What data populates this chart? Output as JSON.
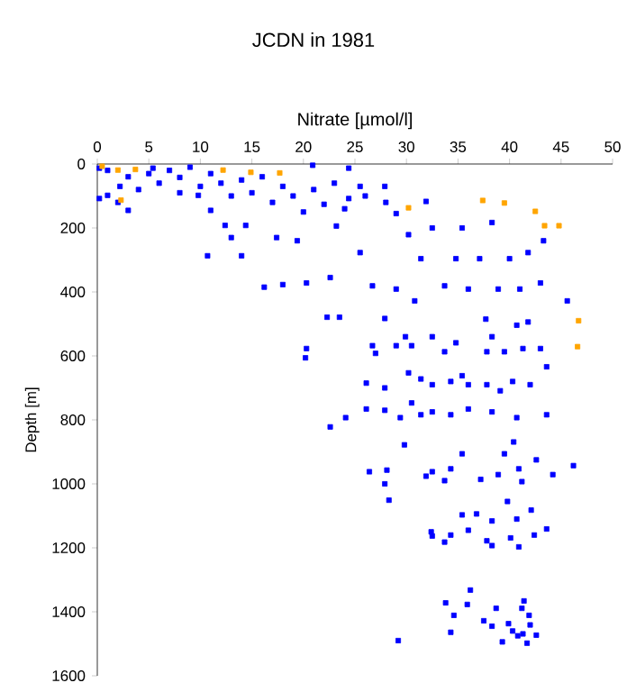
{
  "chart_data": {
    "type": "scatter",
    "title": "JCDN in 1981",
    "xlabel": "Nitrate [µmol/l]",
    "ylabel": "Depth [m]",
    "xlim": [
      0,
      50
    ],
    "xticks": [
      0,
      5,
      10,
      15,
      20,
      25,
      30,
      35,
      40,
      45,
      50
    ],
    "ylim": [
      1600,
      0
    ],
    "yticks": [
      0,
      200,
      400,
      600,
      800,
      1000,
      1200,
      1400,
      1600
    ],
    "grid": false,
    "marker": "square",
    "series": [
      {
        "color": "#0000ff",
        "x": [
          0.2,
          0.2,
          1,
          2.2,
          3,
          5.4,
          8,
          9.8,
          10.7,
          11,
          12.4,
          13,
          14,
          14.4,
          16.2,
          17.4,
          18,
          19.4,
          20.3,
          20.9,
          22,
          22.6,
          22.3,
          23.5,
          23.2,
          24.4,
          24.4,
          25.5,
          25.5,
          26.7,
          27.9,
          29,
          29,
          27.9,
          30.2,
          30.8,
          31.4,
          31.9,
          32.5,
          33.7,
          34.8,
          35.4,
          36,
          37.1,
          37.7,
          38.3,
          38.9,
          40,
          40.7,
          41,
          41.8,
          41.8,
          43,
          43.3,
          45.6,
          1,
          3,
          5,
          7,
          9,
          11,
          12,
          14,
          16,
          18,
          10,
          6,
          4,
          15,
          19,
          17,
          21,
          23,
          26,
          28,
          2,
          8,
          13,
          20,
          24,
          20.3,
          20.2,
          26.7,
          27,
          29,
          29.9,
          30.5,
          32.5,
          33.7,
          34.8,
          37.8,
          38.3,
          39.5,
          41.3,
          43,
          26.1,
          27.9,
          30.2,
          31.4,
          32.5,
          34.3,
          35.4,
          36,
          37.8,
          39.1,
          40.3,
          42,
          43.6,
          30.5,
          26.1,
          27.9,
          29.4,
          31.4,
          32.5,
          34.3,
          36,
          38.3,
          40.7,
          43.6,
          22.6,
          24.1,
          29.8,
          26.4,
          27.9,
          28.1,
          28.3,
          31.9,
          32.5,
          33.7,
          34.3,
          35.4,
          37.2,
          38.9,
          39.5,
          40.4,
          40.9,
          41.2,
          42.6,
          44.2,
          46.2,
          39.8,
          35.4,
          36.8,
          38.3,
          40.7,
          42.1,
          32.4,
          32.5,
          34.3,
          36,
          37.8,
          40.1,
          42.4,
          43.6,
          33.7,
          38.3,
          40.9,
          29.2,
          33.8,
          34.6,
          34.3,
          35.9,
          36.2,
          37.5,
          38.3,
          38.7,
          39.3,
          39.9,
          40.3,
          40.8,
          41.3,
          41.4,
          41.2,
          41.9,
          42,
          42.6,
          41.7
        ],
        "values": [
          13,
          108,
          98,
          70,
          145,
          13,
          42,
          98,
          287,
          145,
          192,
          230,
          287,
          192,
          385,
          230,
          377,
          240,
          372,
          4,
          126,
          355,
          479,
          479,
          194,
          13,
          108,
          70,
          277,
          381,
          70,
          155,
          391,
          483,
          221,
          428,
          296,
          117,
          200,
          381,
          296,
          200,
          391,
          296,
          485,
          183,
          391,
          296,
          504,
          391,
          277,
          494,
          372,
          240,
          428,
          20,
          40,
          30,
          20,
          10,
          30,
          60,
          50,
          40,
          70,
          70,
          60,
          80,
          90,
          100,
          120,
          80,
          60,
          100,
          120,
          120,
          90,
          100,
          150,
          140,
          577,
          606,
          568,
          592,
          568,
          540,
          568,
          540,
          587,
          559,
          587,
          540,
          587,
          577,
          577,
          685,
          700,
          653,
          672,
          690,
          680,
          662,
          690,
          690,
          709,
          680,
          690,
          634,
          747,
          766,
          770,
          793,
          784,
          775,
          784,
          766,
          775,
          793,
          784,
          822,
          793,
          878,
          962,
          1000,
          957,
          1051,
          976,
          962,
          990,
          953,
          906,
          986,
          971,
          906,
          869,
          953,
          993,
          925,
          971,
          943,
          1055,
          1097,
          1094,
          1116,
          1110,
          1082,
          1150,
          1163,
          1160,
          1145,
          1178,
          1169,
          1160,
          1141,
          1182,
          1193,
          1197,
          1490,
          1372,
          1411,
          1464,
          1377,
          1332,
          1428,
          1445,
          1389,
          1494,
          1437,
          1460,
          1475,
          1469,
          1366,
          1389,
          1411,
          1441,
          1473,
          1498
        ]
      },
      {
        "color": "#ffa500",
        "x": [
          0.47,
          2.0,
          3.7,
          12.2,
          14.9,
          17.7,
          2.3,
          30.2,
          37.4,
          39.5,
          42.5,
          43.4,
          44.8,
          46.7,
          46.6
        ],
        "values": [
          7,
          19,
          17,
          19,
          26,
          28,
          113,
          137,
          114,
          122,
          148,
          193,
          193,
          490,
          571
        ]
      }
    ]
  }
}
